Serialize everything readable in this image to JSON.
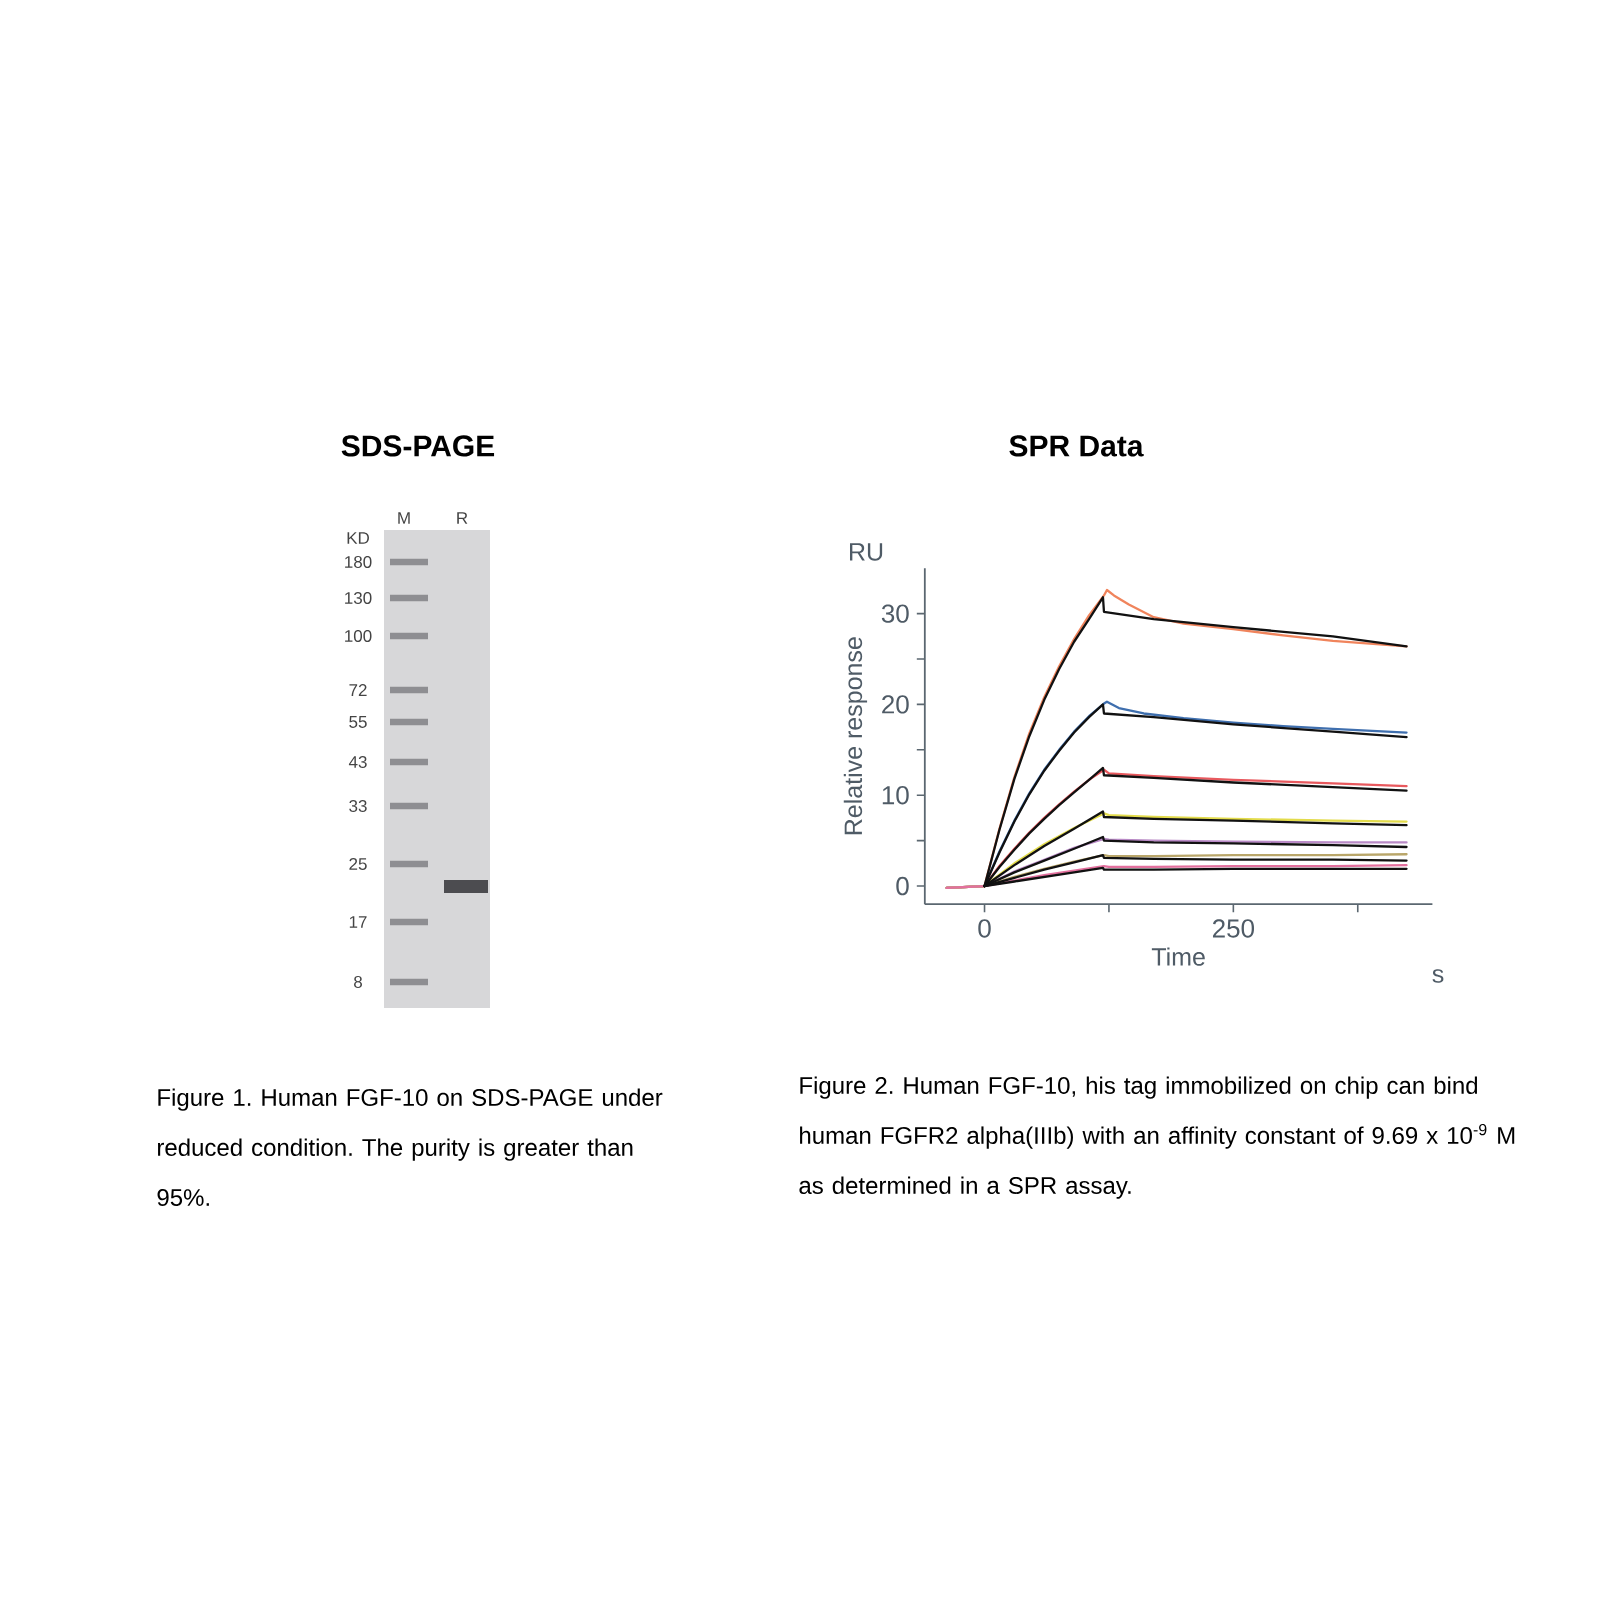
{
  "chart_data": [
    {
      "type": "other",
      "title": "SDS-PAGE",
      "categories": [
        "M",
        "R"
      ],
      "annotations": [
        "KD",
        "180",
        "130",
        "100",
        "72",
        "55",
        "43",
        "33",
        "25",
        "17",
        "8",
        "Figure 1. Human FGF-10 on SDS-PAGE under reduced condition. The purity is greater than 95%."
      ]
    },
    {
      "type": "line",
      "title": "SPR Data",
      "xlabel": "Time",
      "ylabel": "Relative response",
      "annotations": [
        "RU",
        "s",
        "Figure 2. Human FGF-10, his tag immobilized on chip can bind human FGFR2 alpha(IIIb) with an affinity constant of 9.69 x 10$^{-9}$ M as determined in a SPR assay."
      ],
      "xlim": [
        -60,
        450
      ],
      "xticks": [
        0,
        {
          "value": 125,
          "label": null
        },
        250,
        {
          "value": 375,
          "label": null
        }
      ],
      "ylim": [
        -2,
        35
      ],
      "yticks": [
        0,
        {
          "value": 5,
          "label": null
        },
        10,
        {
          "value": 15,
          "label": null
        },
        20,
        {
          "value": 25,
          "label": null
        },
        30
      ],
      "grid": false,
      "legend": false,
      "series": [
        {
          "color": "#f0845c",
          "x": [
            -38,
            0,
            15,
            30,
            45,
            60,
            75,
            90,
            105,
            120,
            123,
            130,
            145,
            170,
            200,
            250,
            300,
            350,
            424
          ],
          "values": [
            -0.2,
            0,
            6.3,
            12,
            16.8,
            20.8,
            24.2,
            27.2,
            29.8,
            32.0,
            32.6,
            32.0,
            31.0,
            29.6,
            28.9,
            28.3,
            27.6,
            27.0,
            26.4
          ]
        },
        {
          "color": "#3f6fae",
          "x": [
            -38,
            0,
            15,
            30,
            45,
            60,
            75,
            90,
            105,
            120,
            123,
            135,
            160,
            200,
            250,
            300,
            350,
            424
          ],
          "values": [
            -0.2,
            0,
            3.8,
            7.2,
            10.2,
            12.8,
            15.0,
            17.0,
            18.7,
            20.1,
            20.3,
            19.6,
            19.0,
            18.5,
            18.0,
            17.6,
            17.3,
            16.9
          ]
        },
        {
          "color": "#e8595e",
          "x": [
            -38,
            0,
            15,
            30,
            45,
            60,
            75,
            90,
            105,
            120,
            125,
            170,
            250,
            350,
            424
          ],
          "values": [
            -0.2,
            0,
            2.2,
            4.1,
            5.9,
            7.5,
            9.0,
            10.4,
            11.7,
            12.8,
            12.4,
            12.1,
            11.7,
            11.3,
            11.0
          ]
        },
        {
          "color": "#e3dc4c",
          "x": [
            -38,
            0,
            30,
            60,
            90,
            120,
            125,
            170,
            250,
            350,
            424
          ],
          "values": [
            -0.2,
            0,
            2.5,
            4.6,
            6.4,
            8.0,
            7.8,
            7.6,
            7.4,
            7.2,
            7.1
          ]
        },
        {
          "color": "#b98ac6",
          "x": [
            -38,
            0,
            30,
            60,
            90,
            120,
            125,
            170,
            250,
            350,
            424
          ],
          "values": [
            -0.2,
            0,
            1.6,
            2.9,
            4.2,
            5.2,
            5.1,
            5.0,
            4.9,
            4.8,
            4.8
          ]
        },
        {
          "color": "#b9a66a",
          "x": [
            -38,
            0,
            30,
            60,
            90,
            120,
            125,
            170,
            250,
            350,
            424
          ],
          "values": [
            -0.2,
            0,
            1.0,
            1.9,
            2.7,
            3.4,
            3.3,
            3.3,
            3.4,
            3.4,
            3.5
          ]
        },
        {
          "color": "#e3709e",
          "x": [
            -38,
            0,
            30,
            60,
            90,
            120,
            125,
            170,
            250,
            350,
            424
          ],
          "values": [
            -0.2,
            0,
            0.6,
            1.2,
            1.7,
            2.2,
            2.1,
            2.1,
            2.2,
            2.2,
            2.3
          ]
        },
        {
          "color": "#111111",
          "x": [
            0,
            15,
            30,
            45,
            60,
            75,
            90,
            105,
            119,
            120,
            170,
            250,
            350,
            424
          ],
          "values": [
            0,
            6.2,
            11.8,
            16.5,
            20.5,
            23.9,
            26.9,
            29.4,
            31.8,
            30.2,
            29.4,
            28.5,
            27.5,
            26.4
          ]
        },
        {
          "color": "#111111",
          "x": [
            0,
            15,
            30,
            45,
            60,
            75,
            90,
            105,
            119,
            120,
            170,
            250,
            350,
            424
          ],
          "values": [
            0,
            3.7,
            7.1,
            10.1,
            12.7,
            14.9,
            16.9,
            18.6,
            20.0,
            19.0,
            18.6,
            17.8,
            17.0,
            16.4
          ]
        },
        {
          "color": "#111111",
          "x": [
            0,
            15,
            30,
            45,
            60,
            75,
            90,
            105,
            119,
            120,
            170,
            250,
            350,
            424
          ],
          "values": [
            0,
            2.1,
            4.0,
            5.8,
            7.4,
            8.9,
            10.3,
            11.7,
            13.0,
            12.2,
            11.9,
            11.4,
            10.9,
            10.5
          ]
        },
        {
          "color": "#111111",
          "x": [
            0,
            30,
            60,
            90,
            119,
            120,
            170,
            250,
            350,
            424
          ],
          "values": [
            0,
            2.3,
            4.4,
            6.3,
            8.2,
            7.6,
            7.4,
            7.2,
            6.9,
            6.7
          ]
        },
        {
          "color": "#111111",
          "x": [
            0,
            30,
            60,
            90,
            119,
            120,
            170,
            250,
            350,
            424
          ],
          "values": [
            0,
            1.5,
            2.8,
            4.1,
            5.4,
            5.0,
            4.8,
            4.7,
            4.5,
            4.3
          ]
        },
        {
          "color": "#111111",
          "x": [
            0,
            30,
            60,
            90,
            119,
            120,
            170,
            250,
            350,
            424
          ],
          "values": [
            0,
            0.9,
            1.8,
            2.6,
            3.4,
            3.1,
            3.0,
            2.9,
            2.9,
            2.8
          ]
        },
        {
          "color": "#111111",
          "x": [
            0,
            30,
            60,
            90,
            119,
            120,
            170,
            250,
            350,
            424
          ],
          "values": [
            0,
            0.5,
            1.0,
            1.5,
            2.0,
            1.8,
            1.8,
            1.9,
            1.9,
            1.9
          ]
        }
      ]
    }
  ]
}
